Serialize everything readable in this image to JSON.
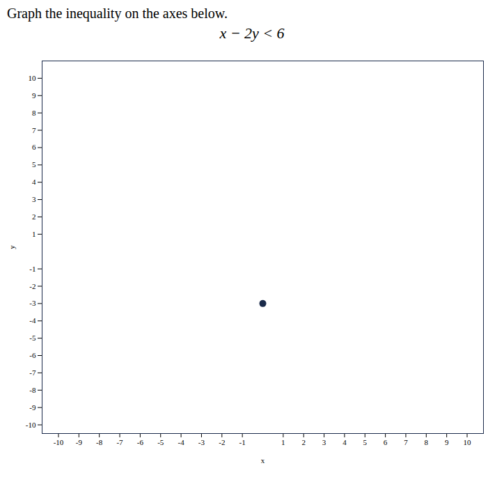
{
  "chart_data": {
    "type": "scatter",
    "title": "Graph the inequality on the axes below.",
    "subtitle": "x − 2y < 6",
    "x": [
      0
    ],
    "values": [
      -3
    ],
    "color": "#1a2a4a",
    "xlabel": "x",
    "ylabel": "y",
    "xlim": [
      -10.8,
      10.8
    ],
    "ylim": [
      -10.5,
      11.0
    ],
    "xticks": [
      -10,
      -9,
      -8,
      -7,
      -6,
      -5,
      -4,
      -3,
      -2,
      -1,
      1,
      2,
      3,
      4,
      5,
      6,
      7,
      8,
      9,
      10
    ],
    "yticks": [
      -10,
      -9,
      -8,
      -7,
      -6,
      -5,
      -4,
      -3,
      -2,
      -1,
      1,
      2,
      3,
      4,
      5,
      6,
      7,
      8,
      9,
      10
    ],
    "grid": false
  }
}
